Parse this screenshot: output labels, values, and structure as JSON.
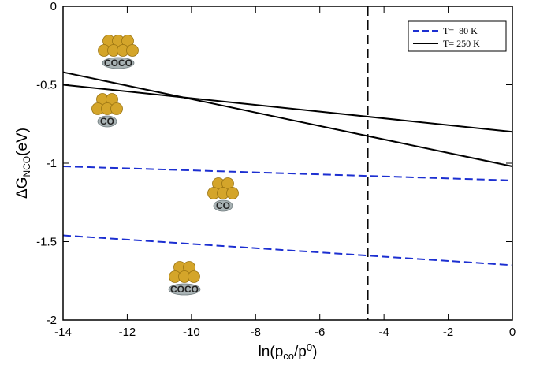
{
  "chart_data": {
    "type": "line",
    "xlabel": [
      "ln(p",
      "co",
      "/p",
      "0",
      ")"
    ],
    "ylabel": [
      "ΔG",
      "NCO",
      "(eV)"
    ],
    "x": [
      -14,
      0
    ],
    "series": [
      {
        "name": "T=  80 K",
        "color": "#1c2fd1",
        "dashed": true,
        "values": [
          [
            -1.02,
            -1.11
          ],
          [
            -1.46,
            -1.65
          ]
        ]
      },
      {
        "name": "T= 250 K",
        "color": "#000000",
        "dashed": false,
        "values": [
          [
            -0.42,
            -1.02
          ],
          [
            -0.5,
            -0.8
          ]
        ]
      }
    ],
    "vline": -4.5,
    "annotations": [
      "COCO",
      "CO",
      "CO",
      "COCO"
    ],
    "xlim": [
      -14,
      0
    ],
    "ylim": [
      -2,
      0
    ],
    "xticks": [
      -14,
      -12,
      -10,
      -8,
      -6,
      -4,
      -2,
      0
    ],
    "yticks": [
      0,
      -0.5,
      -1,
      -1.5,
      -2
    ],
    "legend": "upper-right"
  }
}
